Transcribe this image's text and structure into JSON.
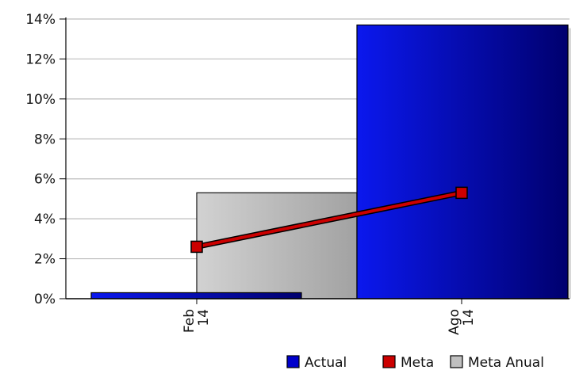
{
  "chart_data": {
    "type": "bar",
    "categories": [
      {
        "line1": "Feb",
        "line2": "14"
      },
      {
        "line1": "Ago",
        "line2": "14"
      }
    ],
    "series": [
      {
        "name": "Actual",
        "type": "bar",
        "values": [
          0.3,
          13.7
        ],
        "color": "#0000cc"
      },
      {
        "name": "Meta",
        "type": "line",
        "values": [
          2.6,
          5.3
        ],
        "color": "#cc0000"
      },
      {
        "name": "Meta Anual",
        "type": "bar",
        "values": [
          5.3,
          null
        ],
        "color": "#c0c0c0"
      }
    ],
    "y_ticks": [
      "0%",
      "2%",
      "4%",
      "6%",
      "8%",
      "10%",
      "12%",
      "14%"
    ],
    "ylim": [
      0,
      14
    ],
    "grid": true,
    "legend_position": "bottom-right",
    "legend": [
      {
        "label": "Actual",
        "color": "#0000cc"
      },
      {
        "label": "Meta",
        "color": "#cc0000"
      },
      {
        "label": "Meta Anual",
        "color": "#c0c0c0"
      }
    ]
  }
}
